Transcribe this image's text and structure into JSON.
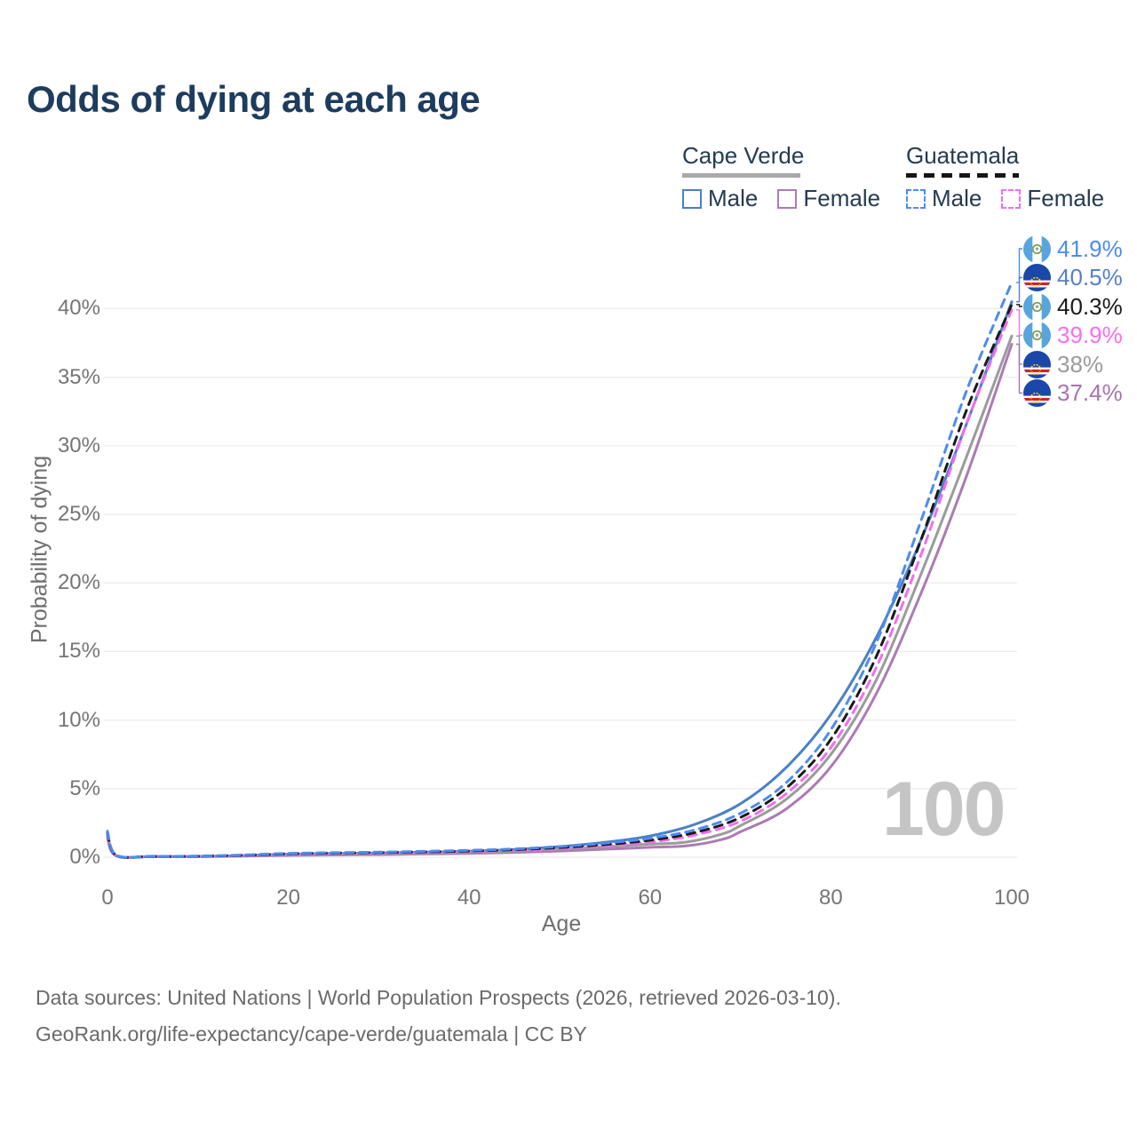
{
  "title": "Odds of dying at each age",
  "watermark": "100",
  "legend": {
    "groups": [
      {
        "label": "Cape Verde",
        "line_style": "solid",
        "underline_color": "#a9a9a9",
        "items": [
          {
            "label": "Male",
            "color": "#4b80c6",
            "dashed": false
          },
          {
            "label": "Female",
            "color": "#ad7ab5",
            "dashed": false
          }
        ]
      },
      {
        "label": "Guatemala",
        "line_style": "dashed",
        "underline_color": "#161616",
        "items": [
          {
            "label": "Male",
            "color": "#4d8bf0",
            "dashed": true
          },
          {
            "label": "Female",
            "color": "#f06df0",
            "dashed": true
          }
        ]
      }
    ]
  },
  "end_labels": [
    {
      "value_label": "41.9%",
      "color": "#4d8bf0",
      "flag": "guatemala",
      "series": "gt_male"
    },
    {
      "value_label": "40.5%",
      "color": "#5581c8",
      "flag": "cape-verde",
      "series": "cv_male"
    },
    {
      "value_label": "40.3%",
      "color": "#1a1a1a",
      "flag": "guatemala",
      "series": "gt_both"
    },
    {
      "value_label": "39.9%",
      "color": "#f96df0",
      "flag": "guatemala",
      "series": "gt_female"
    },
    {
      "value_label": "38%",
      "color": "#9b9b9b",
      "flag": "cape-verde",
      "series": "cv_both"
    },
    {
      "value_label": "37.4%",
      "color": "#a874ad",
      "flag": "cape-verde",
      "series": "cv_female"
    }
  ],
  "axes": {
    "x": {
      "title": "Age",
      "ticks": [
        {
          "v": 0,
          "label": "0"
        },
        {
          "v": 20,
          "label": "20"
        },
        {
          "v": 40,
          "label": "40"
        },
        {
          "v": 60,
          "label": "60"
        },
        {
          "v": 80,
          "label": "80"
        },
        {
          "v": 100,
          "label": "100"
        }
      ]
    },
    "y": {
      "title": "Probability of dying",
      "ticks": [
        {
          "v": 0,
          "label": "0%"
        },
        {
          "v": 5,
          "label": "5%"
        },
        {
          "v": 10,
          "label": "10%"
        },
        {
          "v": 15,
          "label": "15%"
        },
        {
          "v": 20,
          "label": "20%"
        },
        {
          "v": 25,
          "label": "25%"
        },
        {
          "v": 30,
          "label": "30%"
        },
        {
          "v": 35,
          "label": "35%"
        },
        {
          "v": 40,
          "label": "40%"
        }
      ]
    }
  },
  "footer": {
    "line1": "Data sources: United Nations | World Population Prospects (2026, retrieved 2026-03-10).",
    "line2": "GeoRank.org/life-expectancy/cape-verde/guatemala | CC BY"
  },
  "chart_data": {
    "type": "line",
    "title": "Odds of dying at each age",
    "xlabel": "Age",
    "ylabel": "Probability of dying",
    "xlim": [
      0,
      100
    ],
    "ylim": [
      0,
      42
    ],
    "grid": "horizontal",
    "legend_position": "top-right",
    "series": [
      {
        "id": "cv_female",
        "name": "Cape Verde Female",
        "color": "#ad7ab5",
        "dashed": false,
        "end_value_pct": 37.4,
        "points": [
          [
            0,
            1.35
          ],
          [
            1,
            0.09
          ],
          [
            5,
            0.04
          ],
          [
            10,
            0.04
          ],
          [
            15,
            0.08
          ],
          [
            20,
            0.13
          ],
          [
            25,
            0.16
          ],
          [
            30,
            0.19
          ],
          [
            35,
            0.23
          ],
          [
            40,
            0.28
          ],
          [
            45,
            0.35
          ],
          [
            50,
            0.45
          ],
          [
            55,
            0.58
          ],
          [
            60,
            0.72
          ],
          [
            64,
            0.82
          ],
          [
            68,
            1.3
          ],
          [
            70,
            1.85
          ],
          [
            75,
            3.5
          ],
          [
            80,
            6.6
          ],
          [
            85,
            11.9
          ],
          [
            90,
            19.3
          ],
          [
            95,
            27.8
          ],
          [
            100,
            37.4
          ]
        ]
      },
      {
        "id": "cv_both",
        "name": "Cape Verde Both sexes",
        "color": "#9b9b9b",
        "dashed": false,
        "end_value_pct": 38.0,
        "points": [
          [
            0,
            1.5
          ],
          [
            1,
            0.1
          ],
          [
            5,
            0.05
          ],
          [
            10,
            0.05
          ],
          [
            15,
            0.1
          ],
          [
            20,
            0.17
          ],
          [
            25,
            0.21
          ],
          [
            30,
            0.25
          ],
          [
            35,
            0.3
          ],
          [
            40,
            0.36
          ],
          [
            45,
            0.45
          ],
          [
            50,
            0.58
          ],
          [
            55,
            0.75
          ],
          [
            60,
            0.95
          ],
          [
            64,
            1.1
          ],
          [
            68,
            1.7
          ],
          [
            70,
            2.3
          ],
          [
            75,
            4.2
          ],
          [
            80,
            7.5
          ],
          [
            85,
            12.9
          ],
          [
            90,
            20.7
          ],
          [
            95,
            29.2
          ],
          [
            100,
            38.0
          ]
        ]
      },
      {
        "id": "cv_male",
        "name": "Cape Verde Male",
        "color": "#4b80c6",
        "dashed": false,
        "end_value_pct": 40.5,
        "points": [
          [
            0,
            1.65
          ],
          [
            1,
            0.11
          ],
          [
            5,
            0.05
          ],
          [
            10,
            0.06
          ],
          [
            15,
            0.12
          ],
          [
            20,
            0.22
          ],
          [
            25,
            0.27
          ],
          [
            30,
            0.31
          ],
          [
            35,
            0.37
          ],
          [
            40,
            0.44
          ],
          [
            45,
            0.56
          ],
          [
            50,
            0.77
          ],
          [
            55,
            1.08
          ],
          [
            60,
            1.55
          ],
          [
            65,
            2.4
          ],
          [
            70,
            3.9
          ],
          [
            75,
            6.5
          ],
          [
            80,
            10.4
          ],
          [
            85,
            16.0
          ],
          [
            90,
            23.2
          ],
          [
            95,
            31.6
          ],
          [
            100,
            40.5
          ]
        ]
      },
      {
        "id": "gt_female",
        "name": "Guatemala Female",
        "color": "#f06df0",
        "dashed": true,
        "end_value_pct": 39.9,
        "points": [
          [
            0,
            1.65
          ],
          [
            1,
            0.11
          ],
          [
            5,
            0.05
          ],
          [
            10,
            0.06
          ],
          [
            15,
            0.12
          ],
          [
            20,
            0.21
          ],
          [
            25,
            0.26
          ],
          [
            30,
            0.3
          ],
          [
            35,
            0.35
          ],
          [
            40,
            0.41
          ],
          [
            45,
            0.5
          ],
          [
            50,
            0.63
          ],
          [
            55,
            0.83
          ],
          [
            60,
            1.1
          ],
          [
            65,
            1.62
          ],
          [
            70,
            2.62
          ],
          [
            75,
            4.6
          ],
          [
            80,
            8.0
          ],
          [
            85,
            13.8
          ],
          [
            90,
            22.1
          ],
          [
            95,
            31.6
          ],
          [
            100,
            39.9
          ]
        ]
      },
      {
        "id": "gt_both",
        "name": "Guatemala Both sexes",
        "color": "#1a1a1a",
        "dashed": true,
        "end_value_pct": 40.3,
        "points": [
          [
            0,
            1.78
          ],
          [
            1,
            0.12
          ],
          [
            5,
            0.06
          ],
          [
            10,
            0.07
          ],
          [
            15,
            0.14
          ],
          [
            20,
            0.25
          ],
          [
            25,
            0.3
          ],
          [
            30,
            0.34
          ],
          [
            35,
            0.39
          ],
          [
            40,
            0.45
          ],
          [
            45,
            0.55
          ],
          [
            50,
            0.7
          ],
          [
            55,
            0.92
          ],
          [
            60,
            1.24
          ],
          [
            65,
            1.8
          ],
          [
            70,
            2.9
          ],
          [
            75,
            5.0
          ],
          [
            80,
            8.6
          ],
          [
            85,
            14.6
          ],
          [
            90,
            23.2
          ],
          [
            95,
            32.6
          ],
          [
            100,
            40.3
          ]
        ]
      },
      {
        "id": "gt_male",
        "name": "Guatemala Male",
        "color": "#4d8bf0",
        "dashed": true,
        "end_value_pct": 41.9,
        "points": [
          [
            0,
            1.9
          ],
          [
            1,
            0.14
          ],
          [
            5,
            0.07
          ],
          [
            10,
            0.08
          ],
          [
            15,
            0.16
          ],
          [
            20,
            0.28
          ],
          [
            25,
            0.33
          ],
          [
            30,
            0.37
          ],
          [
            35,
            0.43
          ],
          [
            40,
            0.5
          ],
          [
            45,
            0.6
          ],
          [
            50,
            0.78
          ],
          [
            55,
            1.02
          ],
          [
            60,
            1.38
          ],
          [
            65,
            2.0
          ],
          [
            70,
            3.2
          ],
          [
            75,
            5.4
          ],
          [
            80,
            9.3
          ],
          [
            85,
            15.6
          ],
          [
            90,
            24.6
          ],
          [
            95,
            34.0
          ],
          [
            100,
            41.9
          ]
        ]
      }
    ]
  }
}
